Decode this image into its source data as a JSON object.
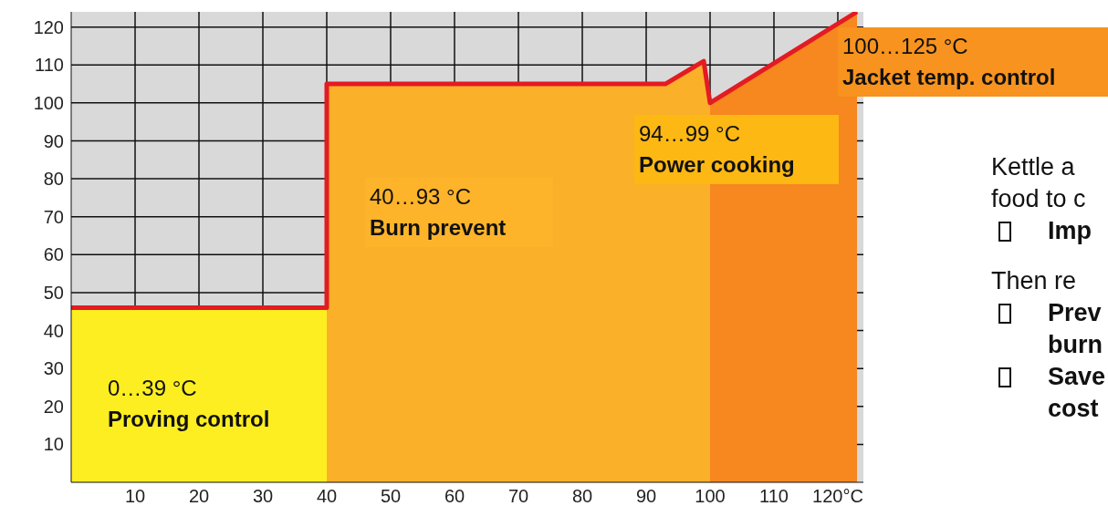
{
  "chart_data": {
    "type": "line",
    "xlim": [
      0,
      124
    ],
    "ylim": [
      0,
      124
    ],
    "xticks": [
      10,
      20,
      30,
      40,
      50,
      60,
      70,
      80,
      90,
      100,
      110,
      {
        "value": 120,
        "label": "120°C"
      }
    ],
    "yticks": [
      10,
      20,
      30,
      40,
      50,
      60,
      70,
      80,
      90,
      100,
      110,
      120
    ],
    "grid": true,
    "marker": "none",
    "line_style": "solid",
    "series": [
      {
        "type": "area",
        "color": "#fcee21",
        "x": [
          0,
          40
        ],
        "values": [
          46,
          46
        ]
      },
      {
        "type": "area",
        "color": "#fbb029",
        "x": [
          40,
          93,
          99,
          100
        ],
        "values": [
          105,
          105,
          111,
          100
        ]
      },
      {
        "type": "area",
        "color": "#f7871f",
        "x": [
          100,
          123
        ],
        "values": [
          100,
          124
        ]
      },
      {
        "color": "#e31b23",
        "x": [
          0,
          40,
          40,
          93,
          99,
          100,
          123
        ],
        "values": [
          46,
          46,
          105,
          105,
          111,
          100,
          124
        ]
      }
    ],
    "annotations": [
      "0…39 °C",
      "Proving control",
      "40…93 °C",
      "Burn prevent",
      "94…99 °C",
      "Power cooking",
      "100…125 °C",
      "Jacket temp. control",
      "Kettle a",
      "food to c",
      "Imp",
      "Then re",
      "Prev",
      "burn",
      "Save",
      "cost"
    ]
  }
}
